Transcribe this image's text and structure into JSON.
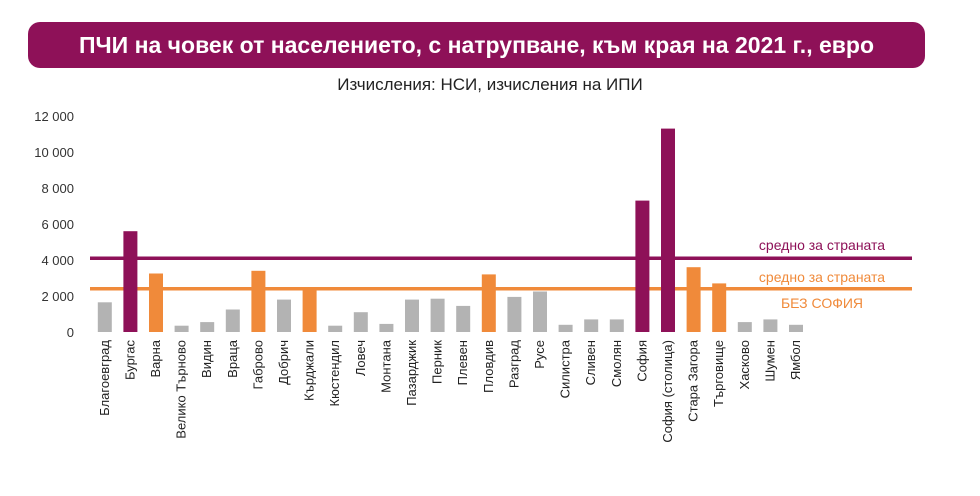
{
  "title": "ПЧИ на човек от населението, с натрупване, към края на 2021 г., евро",
  "subtitle": "Изчисления: НСИ, изчисления на ИПИ",
  "chart_data": {
    "type": "bar",
    "ylim": [
      0,
      12000
    ],
    "yticks": [
      0,
      2000,
      4000,
      6000,
      8000,
      10000,
      12000
    ],
    "ytick_labels": [
      "0",
      "2 000",
      "4 000",
      "6 000",
      "8 000",
      "10 000",
      "12 000"
    ],
    "grid": false,
    "categories": [
      "Благоевград",
      "Бургас",
      "Варна",
      "Велико Търново",
      "Видин",
      "Враца",
      "Габрово",
      "Добрич",
      "Кърджали",
      "Кюстендил",
      "Ловеч",
      "Монтана",
      "Пазарджик",
      "Перник",
      "Плевен",
      "Пловдив",
      "Разград",
      "Русе",
      "Силистра",
      "Сливен",
      "Смолян",
      "София",
      "София (столица)",
      "Стара Загора",
      "Търговище",
      "Хасково",
      "Шумен",
      "Ямбол"
    ],
    "values": [
      1650,
      5600,
      3250,
      350,
      550,
      1250,
      3400,
      1800,
      2450,
      350,
      1100,
      450,
      1800,
      1850,
      1450,
      3200,
      1950,
      2250,
      400,
      700,
      700,
      7300,
      11300,
      3600,
      2700,
      550,
      700,
      400
    ],
    "bar_colors": [
      "#b3b3b3",
      "#8e1158",
      "#f08a3a",
      "#b3b3b3",
      "#b3b3b3",
      "#b3b3b3",
      "#f08a3a",
      "#b3b3b3",
      "#f08a3a",
      "#b3b3b3",
      "#b3b3b3",
      "#b3b3b3",
      "#b3b3b3",
      "#b3b3b3",
      "#b3b3b3",
      "#f08a3a",
      "#b3b3b3",
      "#b3b3b3",
      "#b3b3b3",
      "#b3b3b3",
      "#b3b3b3",
      "#8e1158",
      "#8e1158",
      "#f08a3a",
      "#f08a3a",
      "#b3b3b3",
      "#b3b3b3",
      "#b3b3b3"
    ],
    "reference_lines": [
      {
        "value": 4100,
        "color": "#8e1158",
        "labels": [
          "средно за страната"
        ]
      },
      {
        "value": 2400,
        "color": "#f08a3a",
        "labels": [
          "средно за страната",
          "БЕЗ СОФИЯ"
        ]
      }
    ]
  }
}
